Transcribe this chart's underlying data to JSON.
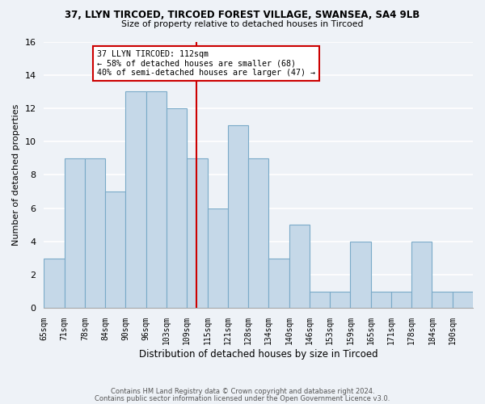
{
  "title1": "37, LLYN TIRCOED, TIRCOED FOREST VILLAGE, SWANSEA, SA4 9LB",
  "title2": "Size of property relative to detached houses in Tircoed",
  "xlabel": "Distribution of detached houses by size in Tircoed",
  "ylabel": "Number of detached properties",
  "bar_labels": [
    "65sqm",
    "71sqm",
    "78sqm",
    "84sqm",
    "90sqm",
    "96sqm",
    "103sqm",
    "109sqm",
    "115sqm",
    "121sqm",
    "128sqm",
    "134sqm",
    "140sqm",
    "146sqm",
    "153sqm",
    "159sqm",
    "165sqm",
    "171sqm",
    "178sqm",
    "184sqm",
    "190sqm"
  ],
  "bar_values": [
    3,
    9,
    9,
    7,
    13,
    13,
    12,
    9,
    6,
    11,
    9,
    3,
    5,
    1,
    1,
    4,
    1,
    1,
    4,
    1,
    1
  ],
  "bar_color": "#c5d8e8",
  "bar_edgecolor": "#7aaac8",
  "vline_index": 7.46,
  "annotation_title": "37 LLYN TIRCOED: 112sqm",
  "annotation_line1": "← 58% of detached houses are smaller (68)",
  "annotation_line2": "40% of semi-detached houses are larger (47) →",
  "vline_color": "#cc0000",
  "annotation_box_edgecolor": "#cc0000",
  "ylim": [
    0,
    16
  ],
  "yticks": [
    0,
    2,
    4,
    6,
    8,
    10,
    12,
    14,
    16
  ],
  "background_color": "#eef2f7",
  "footnote1": "Contains HM Land Registry data © Crown copyright and database right 2024.",
  "footnote2": "Contains public sector information licensed under the Open Government Licence v3.0."
}
